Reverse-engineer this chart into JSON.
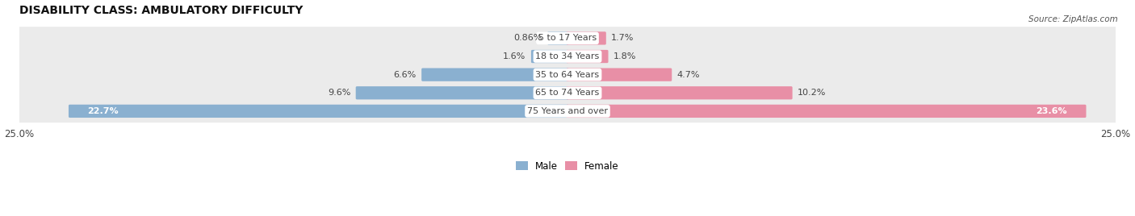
{
  "title": "DISABILITY CLASS: AMBULATORY DIFFICULTY",
  "source": "Source: ZipAtlas.com",
  "categories": [
    "5 to 17 Years",
    "18 to 34 Years",
    "35 to 64 Years",
    "65 to 74 Years",
    "75 Years and over"
  ],
  "male_values": [
    0.86,
    1.6,
    6.6,
    9.6,
    22.7
  ],
  "female_values": [
    1.7,
    1.8,
    4.7,
    10.2,
    23.6
  ],
  "male_labels": [
    "0.86%",
    "1.6%",
    "6.6%",
    "9.6%",
    "22.7%"
  ],
  "female_labels": [
    "1.7%",
    "1.8%",
    "4.7%",
    "10.2%",
    "23.6%"
  ],
  "male_label_inside": [
    false,
    false,
    false,
    false,
    true
  ],
  "female_label_inside": [
    false,
    false,
    false,
    false,
    true
  ],
  "max_val": 25.0,
  "male_color": "#8ab0d0",
  "female_color": "#e88fa6",
  "row_bg_color": "#ebebeb",
  "row_bg_alt": "#f5f5f5",
  "label_color": "#444444",
  "label_inside_color": "#ffffff",
  "title_fontsize": 10,
  "label_fontsize": 8,
  "tick_fontsize": 8.5,
  "legend_fontsize": 8.5,
  "cat_label_fontsize": 8
}
